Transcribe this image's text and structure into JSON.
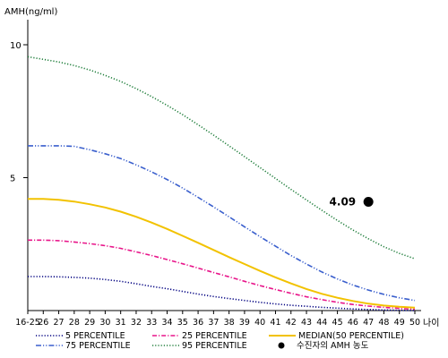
{
  "chart_data": {
    "type": "line",
    "title": "",
    "ylabel": "AMH(ng/ml)",
    "xlabel": "나이",
    "ylim": [
      0,
      11
    ],
    "y_ticks": [
      "10",
      "5"
    ],
    "categories": [
      "16-25",
      "26",
      "27",
      "28",
      "29",
      "30",
      "31",
      "32",
      "33",
      "34",
      "35",
      "36",
      "37",
      "38",
      "39",
      "40",
      "41",
      "42",
      "43",
      "44",
      "45",
      "46",
      "47",
      "48",
      "49",
      "50"
    ],
    "series": [
      {
        "name": "5 PERCENTILE",
        "color": "#000080",
        "style": "dotted",
        "values": [
          1.28,
          1.28,
          1.27,
          1.25,
          1.22,
          1.17,
          1.1,
          1.01,
          0.91,
          0.82,
          0.72,
          0.62,
          0.53,
          0.45,
          0.38,
          0.31,
          0.25,
          0.2,
          0.16,
          0.12,
          0.09,
          0.06,
          0.04,
          0.02,
          0.01,
          0.0
        ]
      },
      {
        "name": "25 PERCENTILE",
        "color": "#e8158a",
        "style": "dashdot",
        "values": [
          2.65,
          2.65,
          2.63,
          2.58,
          2.52,
          2.44,
          2.34,
          2.21,
          2.07,
          1.92,
          1.76,
          1.6,
          1.43,
          1.27,
          1.1,
          0.94,
          0.79,
          0.65,
          0.52,
          0.41,
          0.31,
          0.23,
          0.17,
          0.12,
          0.08,
          0.05
        ]
      },
      {
        "name": "MEDIAN(50 PERCENTILE)",
        "color": "#f2c200",
        "style": "solid",
        "values": [
          4.2,
          4.2,
          4.17,
          4.1,
          4.0,
          3.88,
          3.72,
          3.53,
          3.31,
          3.07,
          2.81,
          2.55,
          2.28,
          2.01,
          1.75,
          1.49,
          1.25,
          1.02,
          0.81,
          0.63,
          0.48,
          0.36,
          0.26,
          0.19,
          0.14,
          0.11
        ]
      },
      {
        "name": "75 PERCENTILE",
        "color": "#3a5fcd",
        "style": "dashdotdot",
        "values": [
          6.2,
          6.2,
          6.2,
          6.18,
          6.05,
          5.9,
          5.72,
          5.48,
          5.22,
          4.93,
          4.61,
          4.26,
          3.9,
          3.53,
          3.15,
          2.78,
          2.42,
          2.07,
          1.75,
          1.45,
          1.19,
          0.96,
          0.77,
          0.61,
          0.48,
          0.38
        ]
      },
      {
        "name": "95 PERCENTILE",
        "color": "#1e7d3a",
        "style": "dotted",
        "values": [
          9.55,
          9.45,
          9.35,
          9.22,
          9.05,
          8.85,
          8.62,
          8.35,
          8.05,
          7.72,
          7.37,
          6.99,
          6.6,
          6.2,
          5.79,
          5.38,
          4.97,
          4.56,
          4.16,
          3.77,
          3.39,
          3.03,
          2.7,
          2.4,
          2.15,
          1.95
        ]
      }
    ],
    "highlight_point": {
      "name": "수진자의 AMH 농도",
      "category": "47",
      "value": 4.09,
      "label": "4.09",
      "color": "#000000"
    },
    "legend_position": "bottom"
  }
}
